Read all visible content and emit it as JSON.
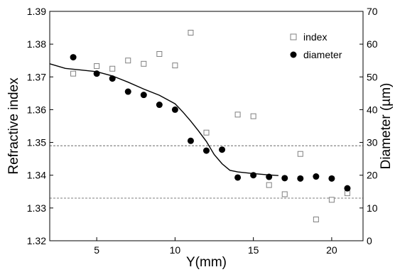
{
  "chart_data": {
    "type": "scatter",
    "xlabel": "Y(mm)",
    "ylabel_left": "Refractive index",
    "ylabel_right": "Diameter (µm)",
    "xlim": [
      2,
      22
    ],
    "ylim_left": [
      1.32,
      1.39
    ],
    "ylim_right": [
      0,
      70
    ],
    "x_ticks": [
      5,
      10,
      15,
      20
    ],
    "x_tick_labels": [
      "5",
      "10",
      "15",
      "20"
    ],
    "y_left_ticks": [
      1.32,
      1.33,
      1.34,
      1.35,
      1.36,
      1.37,
      1.38,
      1.39
    ],
    "y_left_tick_labels": [
      "1.32",
      "1.33",
      "1.34",
      "1.35",
      "1.36",
      "1.37",
      "1.38",
      "1.39"
    ],
    "y_right_ticks": [
      0,
      10,
      20,
      30,
      40,
      50,
      60,
      70
    ],
    "y_right_tick_labels": [
      "0",
      "10",
      "20",
      "30",
      "40",
      "50",
      "60",
      "70"
    ],
    "legend_position": "top-right",
    "grid": false,
    "series": [
      {
        "name": "index",
        "axis": "left",
        "marker": "open-square",
        "color": "#808080",
        "x": [
          3.5,
          5,
          6,
          7,
          8,
          9,
          10,
          11,
          12,
          14,
          15,
          16,
          17,
          18,
          19,
          20,
          21
        ],
        "y": [
          1.371,
          1.3733,
          1.3725,
          1.375,
          1.374,
          1.377,
          1.3735,
          1.3835,
          1.353,
          1.3585,
          1.358,
          1.337,
          1.3342,
          1.3465,
          1.3265,
          1.3325,
          1.3345
        ]
      },
      {
        "name": "diameter",
        "axis": "right",
        "marker": "filled-circle",
        "color": "#000000",
        "x": [
          3.5,
          5,
          6,
          7,
          8,
          9,
          10,
          11,
          12,
          13,
          14,
          15,
          16,
          17,
          18,
          19,
          20,
          21
        ],
        "y": [
          56,
          51,
          49.5,
          45.5,
          44.5,
          41.5,
          40,
          30.5,
          27.5,
          27.8,
          19.3,
          20,
          19.5,
          19.1,
          19,
          19.6,
          19,
          16
        ]
      },
      {
        "axis": "right",
        "style": "solid-line",
        "color": "#000000",
        "x": [
          2,
          3,
          4,
          5,
          6,
          7,
          8,
          9,
          10,
          10.5,
          11,
          11.5,
          12,
          12.5,
          13,
          13.5,
          14,
          15,
          16,
          16.6
        ],
        "y": [
          54,
          52.6,
          52.1,
          51.6,
          50.3,
          48.4,
          46.3,
          44.4,
          41.8,
          39.3,
          36.5,
          33.5,
          30.3,
          26.3,
          23.5,
          21.5,
          21,
          20.5,
          20.1,
          19.9
        ]
      }
    ],
    "reference_lines": [
      {
        "axis": "left",
        "y": 1.349,
        "style": "dashed"
      },
      {
        "axis": "left",
        "y": 1.333,
        "style": "dashed"
      }
    ]
  }
}
